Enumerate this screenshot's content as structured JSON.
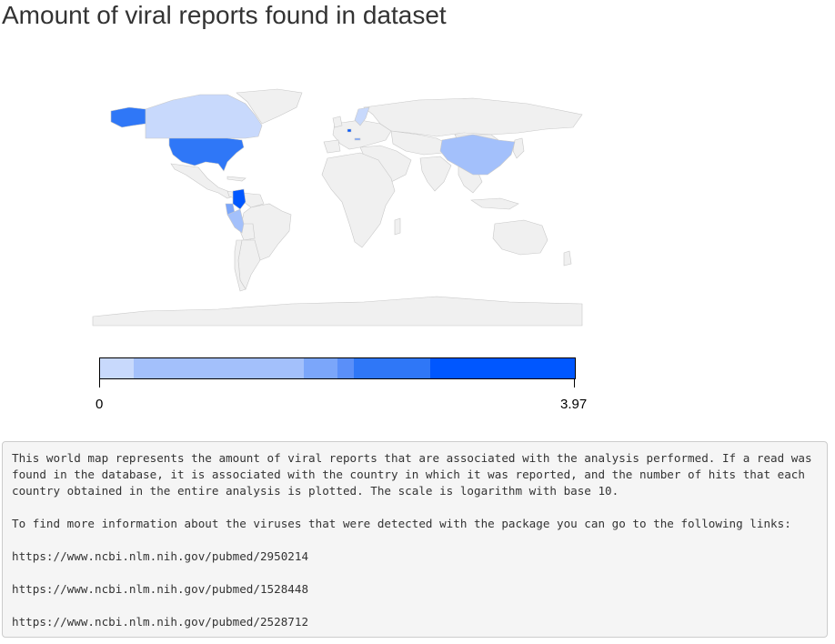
{
  "page_title": "Amount of viral reports found in dataset",
  "colors": {
    "no_data": "#f0f0f0",
    "country_border": "#c8c8c8",
    "light": "#c8d9fc",
    "mid_light": "#a3c0fb",
    "mid": "#7ba6fa",
    "strong": "#2f77f7",
    "strongest": "#0057ff"
  },
  "map": {
    "highlighted_countries": [
      {
        "name": "Canada",
        "color": "#c8d9fc"
      },
      {
        "name": "United States",
        "color": "#2f77f7"
      },
      {
        "name": "Alaska",
        "color": "#2f77f7"
      },
      {
        "name": "China",
        "color": "#a3c0fb"
      },
      {
        "name": "Colombia",
        "color": "#0057ff"
      },
      {
        "name": "Ecuador",
        "color": "#7ba6fa"
      },
      {
        "name": "Peru",
        "color": "#a3c0fb"
      },
      {
        "name": "Norway",
        "color": "#c8d9fc"
      },
      {
        "name": "Belgium",
        "color": "#0057ff"
      },
      {
        "name": "Czechia",
        "color": "#7ba6fa"
      }
    ]
  },
  "legend": {
    "min_label": "0",
    "max_label": "3.97",
    "scale": "log10",
    "segments": [
      {
        "from": 0.0,
        "to": 0.07,
        "color": "#c8d9fc"
      },
      {
        "from": 0.07,
        "to": 0.43,
        "color": "#a3c0fb"
      },
      {
        "from": 0.43,
        "to": 0.5,
        "color": "#7ba6fa"
      },
      {
        "from": 0.5,
        "to": 0.535,
        "color": "#5a8ff9"
      },
      {
        "from": 0.535,
        "to": 0.695,
        "color": "#2f77f7"
      },
      {
        "from": 0.695,
        "to": 1.0,
        "color": "#0057ff"
      }
    ]
  },
  "description": {
    "paragraph": "This world map represents the amount of viral reports that are associated with the analysis performed. If a read was found in the database, it is associated with the country in which it was reported, and the number of hits that each country obtained in the entire analysis is plotted. The scale is logarithm with base 10.",
    "links_intro": "To find more information about the viruses that were detected with the package you can go to the following links:",
    "links": [
      "https://www.ncbi.nlm.nih.gov/pubmed/2950214",
      "https://www.ncbi.nlm.nih.gov/pubmed/1528448",
      "https://www.ncbi.nlm.nih.gov/pubmed/2528712"
    ]
  }
}
